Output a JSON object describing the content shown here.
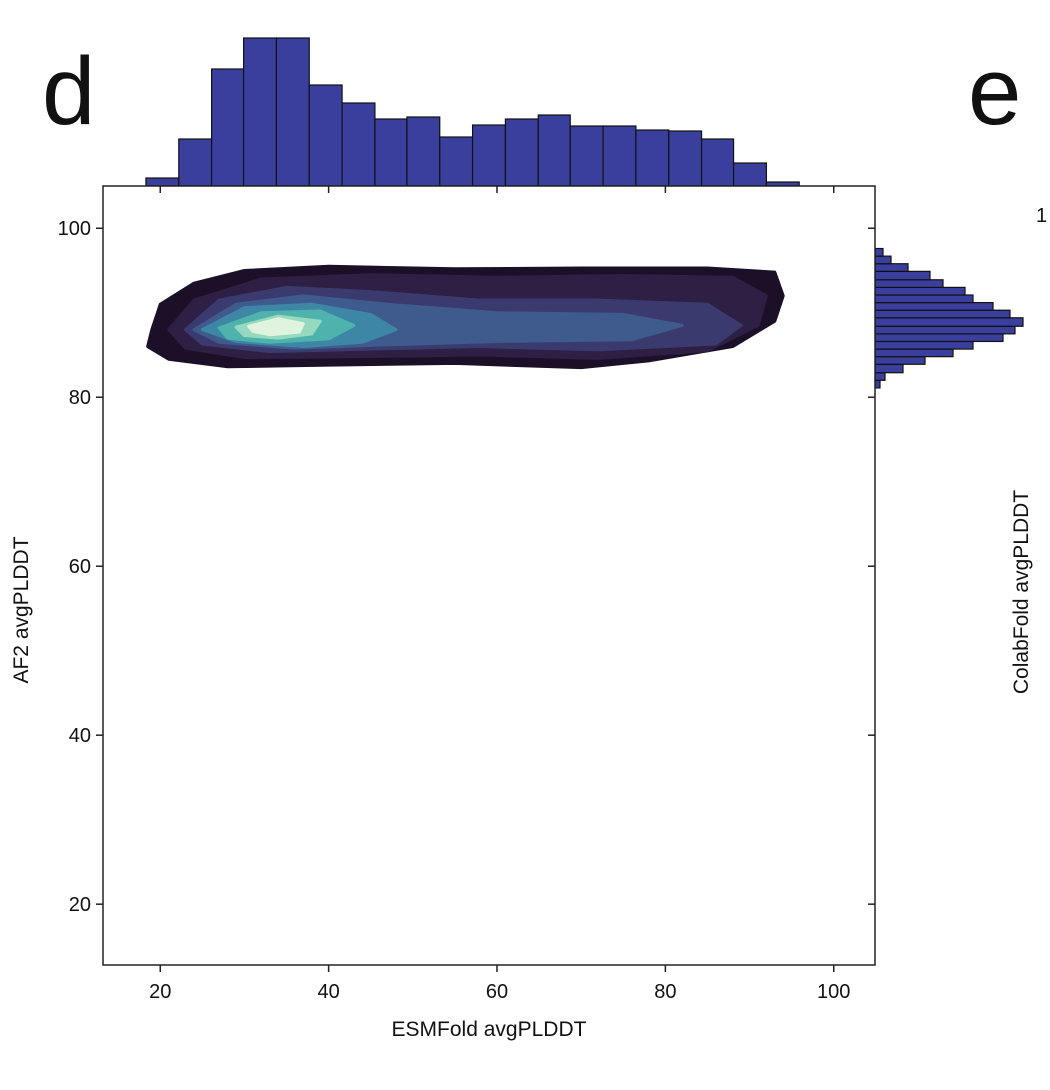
{
  "chart_data": {
    "type": "joint-kde",
    "panel_label": "d",
    "x_label": "ESMFold avgPLDDT",
    "y_label": "AF2 avgPLDDT",
    "xlim": [
      13.2,
      104.9
    ],
    "ylim": [
      12.8,
      105
    ],
    "xticks": [
      20,
      40,
      60,
      80,
      100
    ],
    "yticks": [
      20,
      40,
      60,
      80,
      100
    ],
    "contours": [
      {
        "color": "#1b1028",
        "x": [
          19,
          20,
          24,
          30,
          40,
          55,
          70,
          85,
          93,
          94,
          93,
          88,
          78,
          70,
          55,
          40,
          28,
          21,
          18.5
        ],
        "y": [
          88,
          91,
          93.5,
          95,
          95.5,
          95.2,
          95.3,
          95.3,
          94.8,
          92,
          89,
          86,
          84.3,
          83.5,
          84,
          83.8,
          83.6,
          84.5,
          86
        ]
      },
      {
        "color": "#2e1f45",
        "x": [
          21,
          24,
          32,
          45,
          60,
          75,
          88,
          92,
          91,
          85,
          72,
          58,
          44,
          30,
          23
        ],
        "y": [
          88,
          91.5,
          94,
          94.5,
          94.2,
          94.4,
          94.2,
          92,
          88.5,
          85.5,
          84.6,
          85,
          84.8,
          84.7,
          85.8
        ]
      },
      {
        "color": "#3b3a6e",
        "x": [
          23,
          27,
          35,
          45,
          58,
          72,
          85,
          89,
          86,
          72,
          58,
          45,
          33,
          25
        ],
        "y": [
          88,
          91.5,
          93,
          92.5,
          91.5,
          91.5,
          91,
          88.5,
          86.3,
          85.6,
          86,
          85.7,
          85.4,
          86.3
        ]
      },
      {
        "color": "#3f5a8c",
        "x": [
          24,
          29,
          37,
          47,
          60,
          75,
          82,
          76,
          60,
          47,
          36,
          27
        ],
        "y": [
          88,
          91,
          92,
          91,
          90,
          89.8,
          88.5,
          86.8,
          86.6,
          86.2,
          85.8,
          86.5
        ]
      },
      {
        "color": "#3e86a6",
        "x": [
          25,
          30,
          38,
          45,
          48,
          44,
          37,
          29
        ],
        "y": [
          88,
          90.6,
          91,
          89.8,
          88,
          86.5,
          86,
          86.6
        ]
      },
      {
        "color": "#4fb3ad",
        "x": [
          27,
          32,
          39,
          43,
          40,
          33,
          28
        ],
        "y": [
          88.2,
          90,
          90.2,
          88.5,
          86.9,
          86.5,
          87
        ]
      },
      {
        "color": "#95d9bf",
        "x": [
          29,
          34,
          39,
          38,
          34,
          30
        ],
        "y": [
          88.3,
          89.6,
          89,
          87.5,
          87,
          87.3
        ]
      },
      {
        "color": "#dff3df",
        "x": [
          30.5,
          34,
          37,
          36.5,
          33,
          31
        ],
        "y": [
          88.4,
          89.3,
          88.7,
          87.7,
          87.4,
          87.8
        ]
      }
    ],
    "top_histogram": {
      "color": "#3a3f9e",
      "bins": [
        18.3,
        22.2,
        26.1,
        29.9,
        33.8,
        37.7,
        41.6,
        45.5,
        49.3,
        53.2,
        57.1,
        61.0,
        64.9,
        68.7,
        72.6,
        76.5,
        80.4,
        84.3,
        88.1,
        92.0,
        95.9
      ],
      "counts": [
        8,
        47,
        117,
        148,
        148,
        101,
        83,
        67,
        69,
        49,
        61,
        67,
        71,
        60,
        60,
        56,
        55,
        47,
        23,
        4
      ]
    },
    "right_histogram": {
      "color": "#3a3f9e",
      "bins": [
        81.1,
        82.0,
        82.9,
        83.9,
        84.8,
        85.7,
        86.6,
        87.5,
        88.4,
        89.4,
        90.3,
        91.2,
        92.1,
        93.0,
        93.9,
        94.9,
        95.8,
        96.7,
        97.6
      ],
      "counts": [
        5,
        10,
        28,
        50,
        78,
        98,
        128,
        140,
        148,
        135,
        118,
        98,
        90,
        68,
        55,
        33,
        16,
        8
      ]
    }
  },
  "neighbor_panel": {
    "label": "e",
    "clipped_tick": "1",
    "y_axis_label": "ColabFold avgPLDDT"
  }
}
